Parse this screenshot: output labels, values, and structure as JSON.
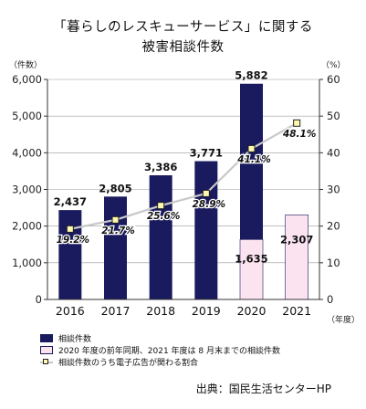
{
  "title_line1": "「暮らしのレスキューサービス」に関する",
  "title_line2": "被害相談件数",
  "source": "出典：国民生活センターHP",
  "colors": {
    "bar_main": "#1a1a5e",
    "bar_pink": "#fbe3f0",
    "bar_pink_stroke": "#1a1a5e",
    "line": "#c8c8c8",
    "marker_fill": "#fff9b0",
    "grid": "#999999"
  },
  "chart_data": {
    "type": "bar",
    "title": "「暮らしのレスキューサービス」に関する 被害相談件数",
    "y_left_unit": "（件数）",
    "y_right_unit": "（%）",
    "x_unit": "（年度）",
    "categories": [
      "2016",
      "2017",
      "2018",
      "2019",
      "2020",
      "2021"
    ],
    "ylim_left": [
      0,
      6000
    ],
    "yticks_left": [
      "0",
      "1,000",
      "2,000",
      "3,000",
      "4,000",
      "5,000",
      "6,000"
    ],
    "ylim_right": [
      0,
      60
    ],
    "yticks_right": [
      "0",
      "10",
      "20",
      "30",
      "40",
      "50",
      "60"
    ],
    "grid": true,
    "series": [
      {
        "name": "相談件数",
        "kind": "bar",
        "values": [
          2437,
          2805,
          3386,
          3771,
          5882,
          null
        ],
        "labels": [
          "2,437",
          "2,805",
          "3,386",
          "3,771",
          "5,882",
          ""
        ]
      },
      {
        "name": "2020 年度の前年同期、2021 年度は 8 月末までの相談件数",
        "kind": "bar_overlay",
        "values": [
          null,
          null,
          null,
          null,
          1635,
          2307
        ],
        "labels": [
          "",
          "",
          "",
          "",
          "1,635",
          "2,307"
        ]
      },
      {
        "name": "相談件数のうち電子広告が関わる割合",
        "kind": "line",
        "axis": "right",
        "values": [
          19.2,
          21.7,
          25.6,
          28.9,
          41.1,
          48.1
        ],
        "labels": [
          "19.2%",
          "21.7%",
          "25.6%",
          "28.9%",
          "41.1%",
          "48.1%"
        ]
      }
    ]
  }
}
